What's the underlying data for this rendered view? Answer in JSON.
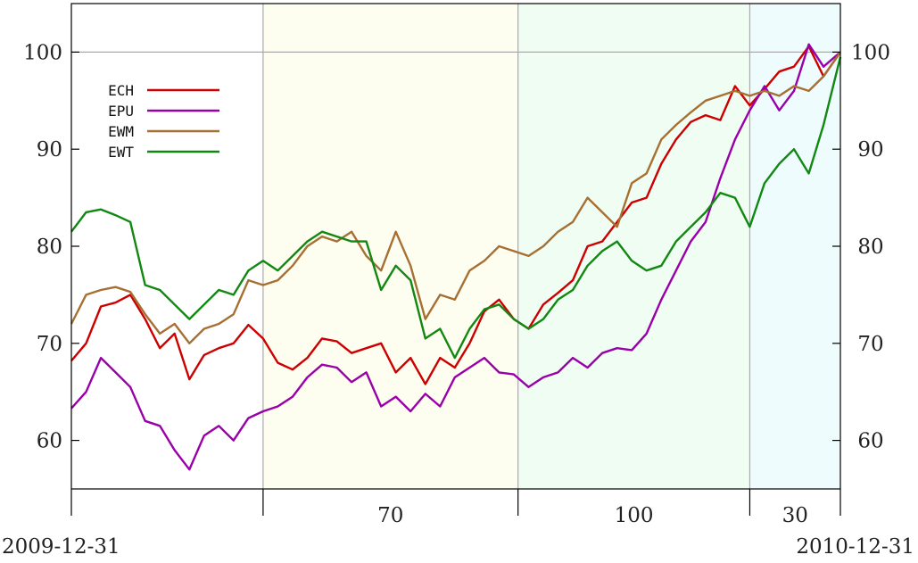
{
  "chart_data": {
    "type": "line",
    "y_ticks": [
      60,
      70,
      80,
      90,
      100
    ],
    "ylim": [
      55,
      105
    ],
    "start_date_label": "2009-12-31",
    "end_date_label": "2010-12-31",
    "x_range": [
      "2009-12-31",
      "2010-12-31"
    ],
    "period_bands": [
      {
        "start": "2009-12-31",
        "end": "2010-04-01",
        "color": "#ffffff",
        "label": ""
      },
      {
        "start": "2010-04-01",
        "end": "2010-07-31",
        "color": "#fefef0",
        "label": "70"
      },
      {
        "start": "2010-07-31",
        "end": "2010-11-18",
        "color": "#f0fdf2",
        "label": "100"
      },
      {
        "start": "2010-11-18",
        "end": "2010-12-31",
        "color": "#eefcfd",
        "label": "30"
      }
    ],
    "legend_position": "top-left",
    "grid_y": [
      100
    ],
    "series": [
      {
        "name": "ECH",
        "color": "#cc0000",
        "points": [
          [
            "2009-12-31",
            68.2
          ],
          [
            "2010-01-07",
            70.0
          ],
          [
            "2010-01-14",
            73.8
          ],
          [
            "2010-01-21",
            74.2
          ],
          [
            "2010-01-28",
            75.0
          ],
          [
            "2010-02-04",
            72.5
          ],
          [
            "2010-02-11",
            69.5
          ],
          [
            "2010-02-18",
            71.0
          ],
          [
            "2010-02-25",
            66.3
          ],
          [
            "2010-03-04",
            68.8
          ],
          [
            "2010-03-11",
            69.5
          ],
          [
            "2010-03-18",
            70.0
          ],
          [
            "2010-03-25",
            71.9
          ],
          [
            "2010-04-01",
            70.5
          ],
          [
            "2010-04-08",
            68.0
          ],
          [
            "2010-04-15",
            67.3
          ],
          [
            "2010-04-22",
            68.5
          ],
          [
            "2010-04-29",
            70.5
          ],
          [
            "2010-05-06",
            70.2
          ],
          [
            "2010-05-13",
            69.0
          ],
          [
            "2010-05-20",
            69.5
          ],
          [
            "2010-05-27",
            70.0
          ],
          [
            "2010-06-03",
            67.0
          ],
          [
            "2010-06-10",
            68.5
          ],
          [
            "2010-06-17",
            65.8
          ],
          [
            "2010-06-24",
            68.5
          ],
          [
            "2010-07-01",
            67.5
          ],
          [
            "2010-07-08",
            70.0
          ],
          [
            "2010-07-15",
            73.3
          ],
          [
            "2010-07-22",
            74.5
          ],
          [
            "2010-07-29",
            72.5
          ],
          [
            "2010-08-05",
            71.5
          ],
          [
            "2010-08-12",
            74.0
          ],
          [
            "2010-08-19",
            75.2
          ],
          [
            "2010-08-26",
            76.5
          ],
          [
            "2010-09-02",
            80.0
          ],
          [
            "2010-09-09",
            80.5
          ],
          [
            "2010-09-16",
            82.5
          ],
          [
            "2010-09-23",
            84.5
          ],
          [
            "2010-09-30",
            85.0
          ],
          [
            "2010-10-07",
            88.5
          ],
          [
            "2010-10-14",
            91.0
          ],
          [
            "2010-10-21",
            92.8
          ],
          [
            "2010-10-28",
            93.5
          ],
          [
            "2010-11-04",
            93.0
          ],
          [
            "2010-11-11",
            96.5
          ],
          [
            "2010-11-18",
            94.5
          ],
          [
            "2010-11-25",
            96.2
          ],
          [
            "2010-12-02",
            98.0
          ],
          [
            "2010-12-09",
            98.5
          ],
          [
            "2010-12-16",
            100.6
          ],
          [
            "2010-12-23",
            97.5
          ],
          [
            "2010-12-31",
            100.0
          ]
        ]
      },
      {
        "name": "EPU",
        "color": "#9900aa",
        "points": [
          [
            "2009-12-31",
            63.3
          ],
          [
            "2010-01-07",
            65.0
          ],
          [
            "2010-01-14",
            68.5
          ],
          [
            "2010-01-21",
            67.0
          ],
          [
            "2010-01-28",
            65.5
          ],
          [
            "2010-02-04",
            62.0
          ],
          [
            "2010-02-11",
            61.5
          ],
          [
            "2010-02-18",
            59.0
          ],
          [
            "2010-02-25",
            57.0
          ],
          [
            "2010-03-04",
            60.5
          ],
          [
            "2010-03-11",
            61.5
          ],
          [
            "2010-03-18",
            60.0
          ],
          [
            "2010-03-25",
            62.3
          ],
          [
            "2010-04-01",
            63.0
          ],
          [
            "2010-04-08",
            63.5
          ],
          [
            "2010-04-15",
            64.5
          ],
          [
            "2010-04-22",
            66.5
          ],
          [
            "2010-04-29",
            67.8
          ],
          [
            "2010-05-06",
            67.5
          ],
          [
            "2010-05-13",
            66.0
          ],
          [
            "2010-05-20",
            67.0
          ],
          [
            "2010-05-27",
            63.5
          ],
          [
            "2010-06-03",
            64.5
          ],
          [
            "2010-06-10",
            63.0
          ],
          [
            "2010-06-17",
            64.8
          ],
          [
            "2010-06-24",
            63.5
          ],
          [
            "2010-07-01",
            66.5
          ],
          [
            "2010-07-08",
            67.5
          ],
          [
            "2010-07-15",
            68.5
          ],
          [
            "2010-07-22",
            67.0
          ],
          [
            "2010-07-29",
            66.8
          ],
          [
            "2010-08-05",
            65.5
          ],
          [
            "2010-08-12",
            66.5
          ],
          [
            "2010-08-19",
            67.0
          ],
          [
            "2010-08-26",
            68.5
          ],
          [
            "2010-09-02",
            67.5
          ],
          [
            "2010-09-09",
            69.0
          ],
          [
            "2010-09-16",
            69.5
          ],
          [
            "2010-09-23",
            69.3
          ],
          [
            "2010-09-30",
            71.0
          ],
          [
            "2010-10-07",
            74.5
          ],
          [
            "2010-10-14",
            77.5
          ],
          [
            "2010-10-21",
            80.5
          ],
          [
            "2010-10-28",
            82.5
          ],
          [
            "2010-11-04",
            87.0
          ],
          [
            "2010-11-11",
            91.0
          ],
          [
            "2010-11-18",
            94.0
          ],
          [
            "2010-11-25",
            96.5
          ],
          [
            "2010-12-02",
            94.0
          ],
          [
            "2010-12-09",
            96.0
          ],
          [
            "2010-12-16",
            100.8
          ],
          [
            "2010-12-23",
            98.5
          ],
          [
            "2010-12-31",
            100.0
          ]
        ]
      },
      {
        "name": "EWM",
        "color": "#a66f33",
        "points": [
          [
            "2009-12-31",
            72.0
          ],
          [
            "2010-01-07",
            75.0
          ],
          [
            "2010-01-14",
            75.5
          ],
          [
            "2010-01-21",
            75.8
          ],
          [
            "2010-01-28",
            75.3
          ],
          [
            "2010-02-04",
            73.0
          ],
          [
            "2010-02-11",
            71.0
          ],
          [
            "2010-02-18",
            72.0
          ],
          [
            "2010-02-25",
            70.0
          ],
          [
            "2010-03-04",
            71.5
          ],
          [
            "2010-03-11",
            72.0
          ],
          [
            "2010-03-18",
            73.0
          ],
          [
            "2010-03-25",
            76.5
          ],
          [
            "2010-04-01",
            76.0
          ],
          [
            "2010-04-08",
            76.5
          ],
          [
            "2010-04-15",
            78.0
          ],
          [
            "2010-04-22",
            80.0
          ],
          [
            "2010-04-29",
            81.0
          ],
          [
            "2010-05-06",
            80.5
          ],
          [
            "2010-05-13",
            81.5
          ],
          [
            "2010-05-20",
            79.0
          ],
          [
            "2010-05-27",
            77.5
          ],
          [
            "2010-06-03",
            81.5
          ],
          [
            "2010-06-10",
            78.0
          ],
          [
            "2010-06-17",
            72.5
          ],
          [
            "2010-06-24",
            75.0
          ],
          [
            "2010-07-01",
            74.5
          ],
          [
            "2010-07-08",
            77.5
          ],
          [
            "2010-07-15",
            78.5
          ],
          [
            "2010-07-22",
            80.0
          ],
          [
            "2010-07-29",
            79.5
          ],
          [
            "2010-08-05",
            79.0
          ],
          [
            "2010-08-12",
            80.0
          ],
          [
            "2010-08-19",
            81.5
          ],
          [
            "2010-08-26",
            82.5
          ],
          [
            "2010-09-02",
            85.0
          ],
          [
            "2010-09-09",
            83.5
          ],
          [
            "2010-09-16",
            82.0
          ],
          [
            "2010-09-23",
            86.5
          ],
          [
            "2010-09-30",
            87.5
          ],
          [
            "2010-10-07",
            91.0
          ],
          [
            "2010-10-14",
            92.5
          ],
          [
            "2010-10-21",
            93.8
          ],
          [
            "2010-10-28",
            95.0
          ],
          [
            "2010-11-04",
            95.5
          ],
          [
            "2010-11-11",
            96.0
          ],
          [
            "2010-11-18",
            95.5
          ],
          [
            "2010-11-25",
            96.0
          ],
          [
            "2010-12-02",
            95.5
          ],
          [
            "2010-12-09",
            96.5
          ],
          [
            "2010-12-16",
            96.0
          ],
          [
            "2010-12-23",
            97.5
          ],
          [
            "2010-12-31",
            100.0
          ]
        ]
      },
      {
        "name": "EWT",
        "color": "#118811",
        "points": [
          [
            "2009-12-31",
            81.5
          ],
          [
            "2010-01-07",
            83.5
          ],
          [
            "2010-01-14",
            83.8
          ],
          [
            "2010-01-21",
            83.2
          ],
          [
            "2010-01-28",
            82.5
          ],
          [
            "2010-02-04",
            76.0
          ],
          [
            "2010-02-11",
            75.5
          ],
          [
            "2010-02-18",
            74.0
          ],
          [
            "2010-02-25",
            72.5
          ],
          [
            "2010-03-04",
            74.0
          ],
          [
            "2010-03-11",
            75.5
          ],
          [
            "2010-03-18",
            75.0
          ],
          [
            "2010-03-25",
            77.5
          ],
          [
            "2010-04-01",
            78.5
          ],
          [
            "2010-04-08",
            77.5
          ],
          [
            "2010-04-15",
            79.0
          ],
          [
            "2010-04-22",
            80.5
          ],
          [
            "2010-04-29",
            81.5
          ],
          [
            "2010-05-06",
            81.0
          ],
          [
            "2010-05-13",
            80.5
          ],
          [
            "2010-05-20",
            80.5
          ],
          [
            "2010-05-27",
            75.5
          ],
          [
            "2010-06-03",
            78.0
          ],
          [
            "2010-06-10",
            76.5
          ],
          [
            "2010-06-17",
            70.5
          ],
          [
            "2010-06-24",
            71.5
          ],
          [
            "2010-07-01",
            68.5
          ],
          [
            "2010-07-08",
            71.5
          ],
          [
            "2010-07-15",
            73.5
          ],
          [
            "2010-07-22",
            74.0
          ],
          [
            "2010-07-29",
            72.5
          ],
          [
            "2010-08-05",
            71.5
          ],
          [
            "2010-08-12",
            72.5
          ],
          [
            "2010-08-19",
            74.5
          ],
          [
            "2010-08-26",
            75.5
          ],
          [
            "2010-09-02",
            78.0
          ],
          [
            "2010-09-09",
            79.5
          ],
          [
            "2010-09-16",
            80.5
          ],
          [
            "2010-09-23",
            78.5
          ],
          [
            "2010-09-30",
            77.5
          ],
          [
            "2010-10-07",
            78.0
          ],
          [
            "2010-10-14",
            80.5
          ],
          [
            "2010-10-21",
            82.0
          ],
          [
            "2010-10-28",
            83.5
          ],
          [
            "2010-11-04",
            85.5
          ],
          [
            "2010-11-11",
            85.0
          ],
          [
            "2010-11-18",
            82.0
          ],
          [
            "2010-11-25",
            86.5
          ],
          [
            "2010-12-02",
            88.5
          ],
          [
            "2010-12-09",
            90.0
          ],
          [
            "2010-12-16",
            87.5
          ],
          [
            "2010-12-23",
            92.5
          ],
          [
            "2010-12-31",
            99.5
          ]
        ]
      }
    ]
  }
}
